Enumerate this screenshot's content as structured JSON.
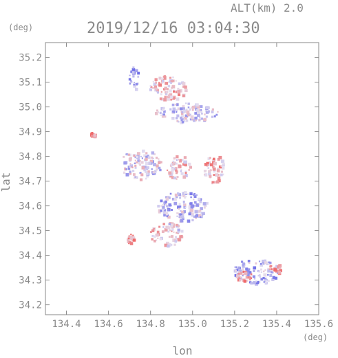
{
  "header": {
    "altitude_label": "ALT(km)",
    "altitude_value": "2.0",
    "datetime": "2019/12/16 03:04:30"
  },
  "chart_data": {
    "type": "heatmap",
    "title": "2019/12/16 03:04:30",
    "xlabel": "lon",
    "ylabel": "lat",
    "x_unit": "(deg)",
    "y_unit": "(deg)",
    "xlim": [
      134.3,
      135.6
    ],
    "ylim": [
      34.16,
      35.26
    ],
    "x_ticks": [
      "134.4",
      "134.6",
      "134.8",
      "135.0",
      "135.2",
      "135.4",
      "135.6"
    ],
    "y_ticks": [
      "34.2",
      "34.3",
      "34.4",
      "34.5",
      "34.6",
      "34.7",
      "34.8",
      "34.9",
      "35.0",
      "35.1",
      "35.2"
    ],
    "grid": false,
    "colors": {
      "positive": "#ef6a6a",
      "negative": "#6f6fe8",
      "near_zero": "#e6e0f0",
      "axis": "#8a8a8a"
    },
    "clusters": [
      {
        "lon": 134.72,
        "lat": 35.12,
        "rx": 0.025,
        "ry": 0.05,
        "value": -0.6
      },
      {
        "lon": 134.88,
        "lat": 35.08,
        "rx": 0.09,
        "ry": 0.05,
        "value": 0.3
      },
      {
        "lon": 134.97,
        "lat": 34.98,
        "rx": 0.15,
        "ry": 0.04,
        "value": -0.2
      },
      {
        "lon": 134.52,
        "lat": 34.89,
        "rx": 0.01,
        "ry": 0.01,
        "value": 0.8
      },
      {
        "lon": 134.75,
        "lat": 34.77,
        "rx": 0.1,
        "ry": 0.06,
        "value": -0.1
      },
      {
        "lon": 134.93,
        "lat": 34.76,
        "rx": 0.06,
        "ry": 0.05,
        "value": 0.2
      },
      {
        "lon": 135.1,
        "lat": 34.75,
        "rx": 0.05,
        "ry": 0.06,
        "value": 0.4
      },
      {
        "lon": 134.95,
        "lat": 34.6,
        "rx": 0.12,
        "ry": 0.06,
        "value": -0.3
      },
      {
        "lon": 134.87,
        "lat": 34.49,
        "rx": 0.08,
        "ry": 0.05,
        "value": 0.1
      },
      {
        "lon": 134.7,
        "lat": 34.47,
        "rx": 0.02,
        "ry": 0.02,
        "value": 0.7
      },
      {
        "lon": 135.3,
        "lat": 34.34,
        "rx": 0.11,
        "ry": 0.05,
        "value": -0.4
      },
      {
        "lon": 135.39,
        "lat": 34.35,
        "rx": 0.03,
        "ry": 0.02,
        "value": 0.9
      },
      {
        "lon": 135.24,
        "lat": 34.32,
        "rx": 0.04,
        "ry": 0.02,
        "value": 0.6
      }
    ]
  }
}
